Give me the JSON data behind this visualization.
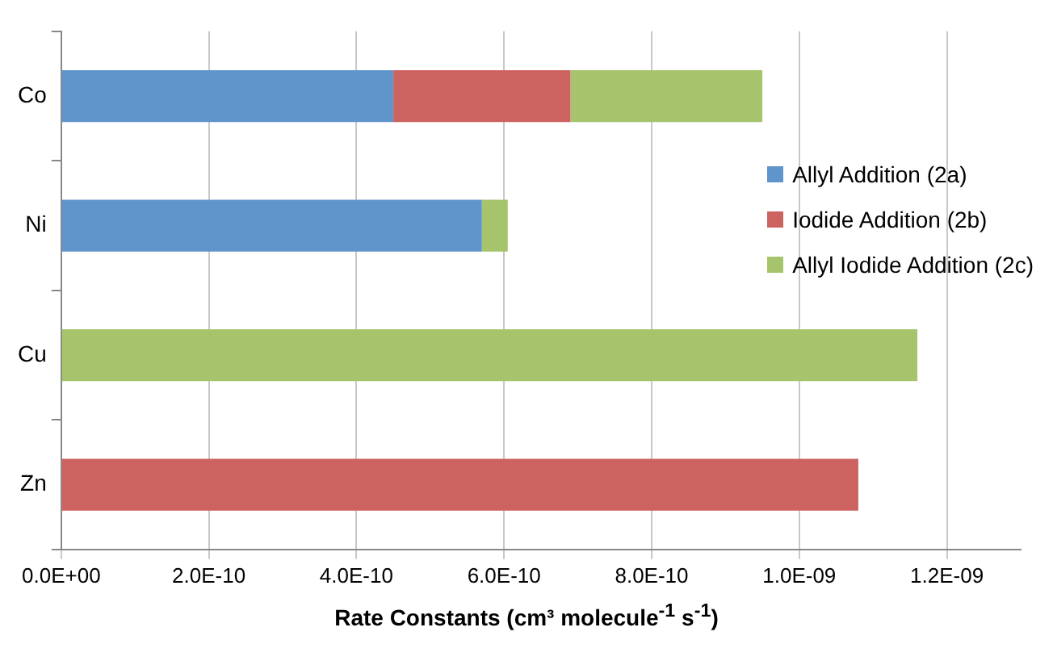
{
  "chart_data": {
    "type": "bar",
    "orientation": "horizontal",
    "stacked": true,
    "categories": [
      "Co",
      "Ni",
      "Cu",
      "Zn"
    ],
    "series": [
      {
        "name": "Allyl Addition (2a)",
        "color": "#6095cc",
        "values": [
          4.5e-10,
          5.7e-10,
          null,
          null
        ]
      },
      {
        "name": "Iodide Addition (2b)",
        "color": "#cd6360",
        "values": [
          2.4e-10,
          null,
          null,
          1.08e-09
        ]
      },
      {
        "name": "Allyl Iodide Addition (2c)",
        "color": "#a6c46b",
        "values": [
          2.6e-10,
          3.5e-11,
          1.16e-09,
          null
        ]
      }
    ],
    "xlabel": "Rate Constants (cm³ molecule$^{-1}$ s$^{-1}$)",
    "xlim": [
      0,
      1.3e-09
    ],
    "xticks": [
      {
        "value": 0,
        "label": "0.0E+00"
      },
      {
        "value": 2e-10,
        "label": "2.0E-10"
      },
      {
        "value": 4e-10,
        "label": "4.0E-10"
      },
      {
        "value": 6e-10,
        "label": "6.0E-10"
      },
      {
        "value": 8e-10,
        "label": "8.0E-10"
      },
      {
        "value": 1e-09,
        "label": "1.0E-09"
      },
      {
        "value": 1.2e-09,
        "label": "1.2E-09"
      }
    ],
    "grid": "x",
    "legend": "right"
  }
}
